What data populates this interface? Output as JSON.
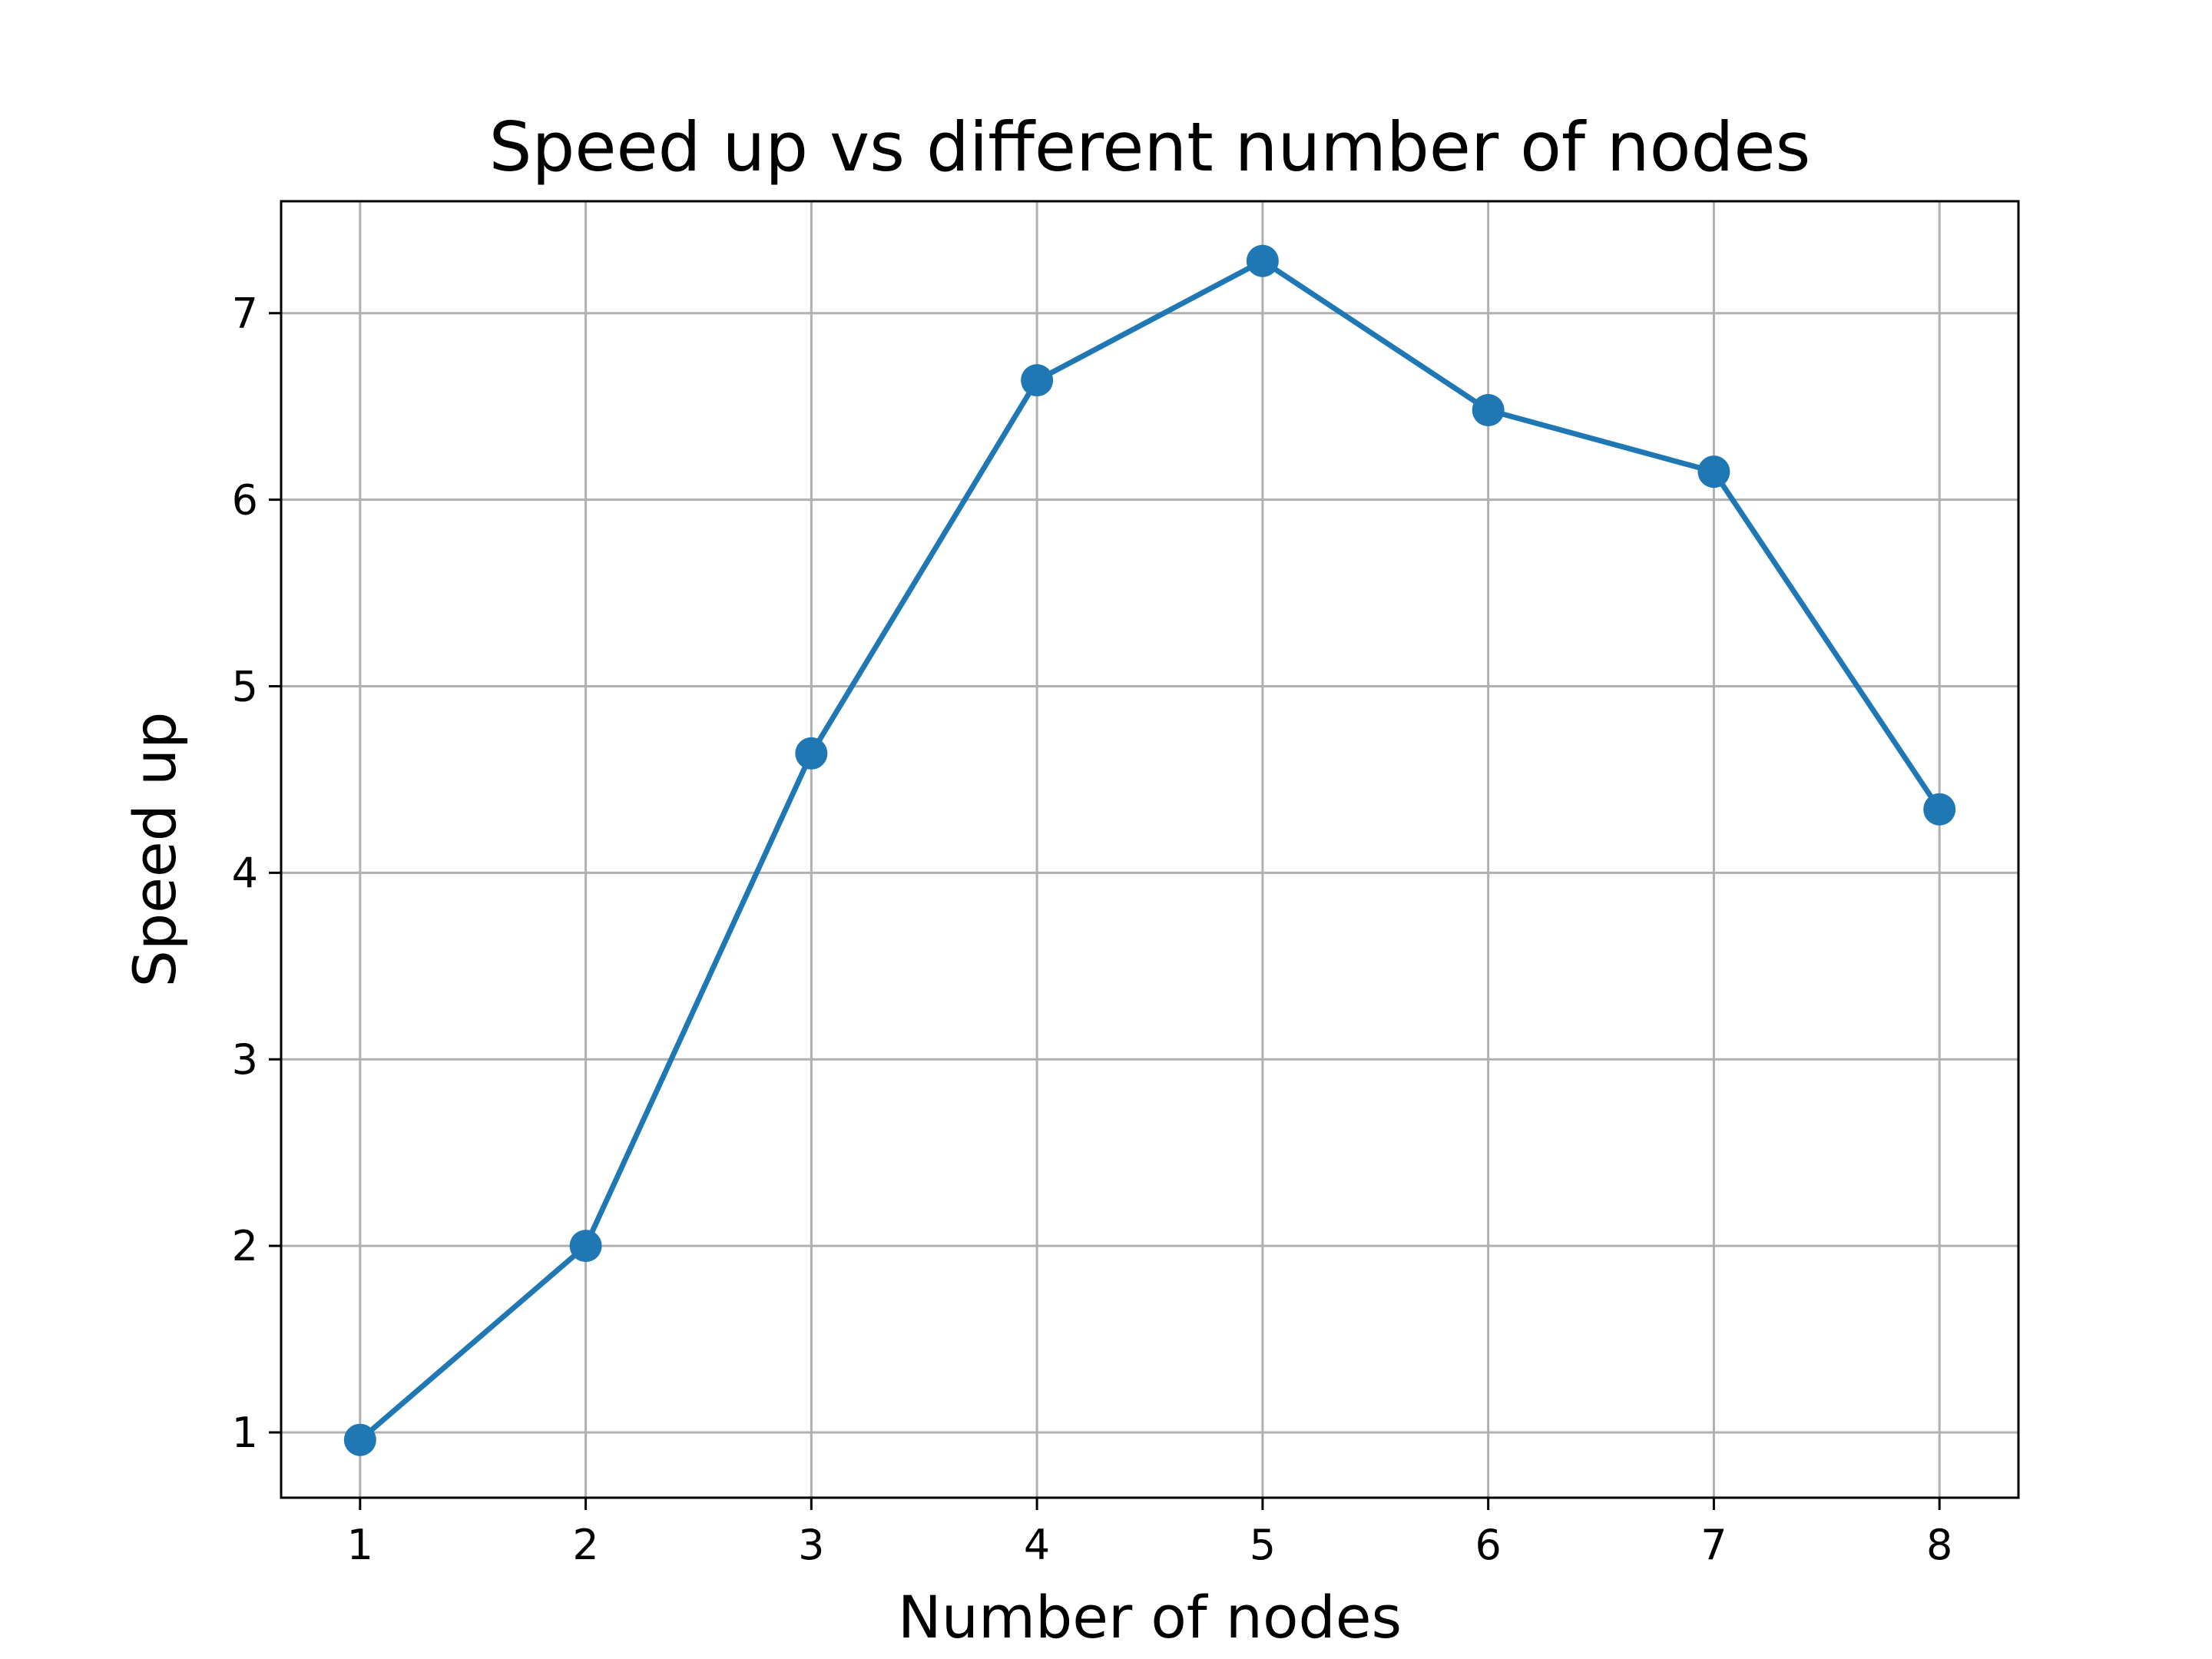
{
  "chart_data": {
    "type": "line",
    "title": "Speed up vs different number of nodes",
    "xlabel": "Number of nodes",
    "ylabel": "Speed up",
    "x": [
      1,
      2,
      3,
      4,
      5,
      6,
      7,
      8
    ],
    "xticks": [
      "1",
      "2",
      "3",
      "4",
      "5",
      "6",
      "7",
      "8"
    ],
    "yticks": [
      "1",
      "2",
      "3",
      "4",
      "5",
      "6",
      "7"
    ],
    "series": [
      {
        "values": [
          0.96,
          2.0,
          4.64,
          6.64,
          7.28,
          6.48,
          6.15,
          4.34
        ]
      }
    ],
    "xlim": [
      0.65,
      8.35
    ],
    "ylim": [
      0.65,
      7.6
    ],
    "grid": true,
    "legend": "none",
    "colors": {
      "line": "#1f77b4",
      "grid": "#b0b0b0",
      "axes": "#000000",
      "background": "#ffffff"
    },
    "marker": "circle"
  }
}
